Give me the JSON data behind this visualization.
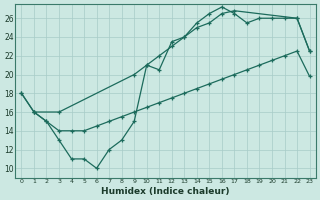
{
  "xlabel": "Humidex (Indice chaleur)",
  "bg_color": "#cce8e2",
  "grid_color": "#a8ccc8",
  "line_color": "#1c6b5c",
  "xlim": [
    -0.5,
    23.5
  ],
  "ylim": [
    9.0,
    27.5
  ],
  "xticks": [
    0,
    1,
    2,
    3,
    4,
    5,
    6,
    7,
    8,
    9,
    10,
    11,
    12,
    13,
    14,
    15,
    16,
    17,
    18,
    19,
    20,
    21,
    22,
    23
  ],
  "yticks": [
    10,
    12,
    14,
    16,
    18,
    20,
    22,
    24,
    26
  ],
  "line1_x": [
    0,
    1,
    2,
    3,
    4,
    5,
    6,
    7,
    8,
    9,
    10,
    11,
    12,
    13,
    14,
    15,
    16,
    17,
    18,
    19,
    20,
    21,
    22,
    23
  ],
  "line1_y": [
    18,
    16,
    15,
    13,
    11,
    11,
    10,
    12,
    13,
    15,
    21,
    20.5,
    23.5,
    24,
    25.5,
    26.5,
    27.2,
    26.5,
    25.5,
    26,
    26,
    26,
    26,
    22.5
  ],
  "line2_x": [
    0,
    1,
    3,
    9,
    10,
    11,
    12,
    13,
    14,
    15,
    16,
    17,
    22,
    23
  ],
  "line2_y": [
    18,
    16,
    16,
    20,
    21,
    22,
    23,
    24,
    25,
    25.5,
    26.5,
    26.8,
    26,
    22.5
  ],
  "line3_x": [
    1,
    2,
    3,
    4,
    5,
    6,
    7,
    8,
    9,
    10,
    11,
    12,
    13,
    14,
    15,
    16,
    17,
    18,
    19,
    20,
    21,
    22,
    23
  ],
  "line3_y": [
    16,
    15,
    14,
    14,
    14,
    14.5,
    15,
    15.5,
    16,
    16.5,
    17,
    17.5,
    18,
    18.5,
    19,
    19.5,
    20,
    20.5,
    21,
    21.5,
    22,
    22.5,
    19.8
  ]
}
